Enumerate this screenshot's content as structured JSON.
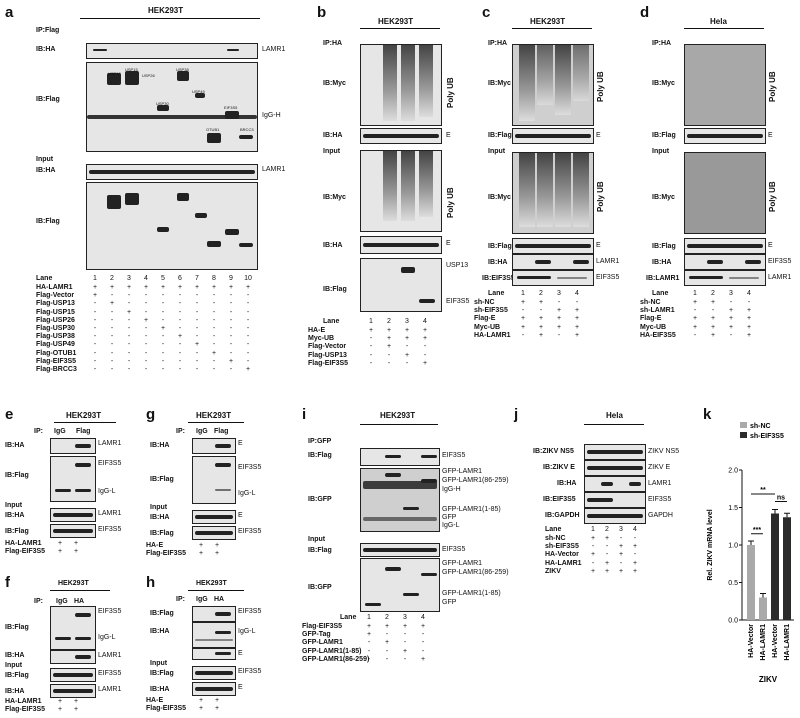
{
  "panels": {
    "a": {
      "label": "a",
      "cell": "HEK293T",
      "ip": "IP:Flag",
      "ib_ha": "IB:HA",
      "lamr1": "LAMR1",
      "ib_flag": "IB:Flag",
      "igg_h": "IgG-H",
      "input": "Input",
      "ib_ha2": "IB:HA",
      "lamr1_2": "LAMR1",
      "ib_flag2": "IB:Flag",
      "bands_top": [
        "USP13",
        "USP15",
        "USP26",
        "USP38",
        "USP30",
        "USP49",
        "EIF3S5",
        "OTUB1",
        "BRCC3"
      ],
      "lane": "Lane",
      "lanes": [
        "1",
        "2",
        "3",
        "4",
        "5",
        "6",
        "7",
        "8",
        "9",
        "10"
      ],
      "rows": [
        {
          "name": "HA-LAMR1",
          "v": [
            "+",
            "+",
            "+",
            "+",
            "+",
            "+",
            "+",
            "+",
            "+",
            "+"
          ]
        },
        {
          "name": "Flag-Vector",
          "v": [
            "+",
            "-",
            "-",
            "-",
            "-",
            "-",
            "-",
            "-",
            "-",
            "-"
          ]
        },
        {
          "name": "Flag-USP13",
          "v": [
            "-",
            "+",
            "-",
            "-",
            "-",
            "-",
            "-",
            "-",
            "-",
            "-"
          ]
        },
        {
          "name": "Flag-USP15",
          "v": [
            "-",
            "-",
            "+",
            "-",
            "-",
            "-",
            "-",
            "-",
            "-",
            "-"
          ]
        },
        {
          "name": "Flag-USP26",
          "v": [
            "-",
            "-",
            "-",
            "+",
            "-",
            "-",
            "-",
            "-",
            "-",
            "-"
          ]
        },
        {
          "name": "Flag-USP30",
          "v": [
            "-",
            "-",
            "-",
            "-",
            "+",
            "-",
            "-",
            "-",
            "-",
            "-"
          ]
        },
        {
          "name": "Flag-USP38",
          "v": [
            "-",
            "-",
            "-",
            "-",
            "-",
            "+",
            "-",
            "-",
            "-",
            "-"
          ]
        },
        {
          "name": "Flag-USP49",
          "v": [
            "-",
            "-",
            "-",
            "-",
            "-",
            "-",
            "+",
            "-",
            "-",
            "-"
          ]
        },
        {
          "name": "Flag-OTUB1",
          "v": [
            "-",
            "-",
            "-",
            "-",
            "-",
            "-",
            "-",
            "+",
            "-",
            "-"
          ]
        },
        {
          "name": "Flag-EIF3S5",
          "v": [
            "-",
            "-",
            "-",
            "-",
            "-",
            "-",
            "-",
            "-",
            "+",
            "-"
          ]
        },
        {
          "name": "Flag-BRCC3",
          "v": [
            "-",
            "-",
            "-",
            "-",
            "-",
            "-",
            "-",
            "-",
            "-",
            "+"
          ]
        }
      ]
    },
    "b": {
      "label": "b",
      "cell": "HEK293T",
      "ip": "IP:HA",
      "ib_myc": "IB:Myc",
      "polyub": "Poly UB",
      "ib_ha": "IB:HA",
      "e": "E",
      "input": "Input",
      "ib_myc2": "IB:Myc",
      "polyub2": "Poly UB",
      "ib_ha2": "IB:HA",
      "e2": "E",
      "ib_flag": "IB:Flag",
      "usp13": "USP13",
      "eif3s5": "EIF3S5",
      "lane": "Lane",
      "lanes": [
        "1",
        "2",
        "3",
        "4"
      ],
      "rows": [
        {
          "name": "HA-E",
          "v": [
            "+",
            "+",
            "+",
            "+"
          ]
        },
        {
          "name": "Myc-UB",
          "v": [
            "-",
            "+",
            "+",
            "+"
          ]
        },
        {
          "name": "Flag-Vector",
          "v": [
            "-",
            "+",
            "-",
            "-"
          ]
        },
        {
          "name": "Flag-USP13",
          "v": [
            "-",
            "-",
            "+",
            "-"
          ]
        },
        {
          "name": "Flag-EIF3S5",
          "v": [
            "-",
            "-",
            "-",
            "+"
          ]
        }
      ]
    },
    "c": {
      "label": "c",
      "cell": "HEK293T",
      "ip": "IP:HA",
      "ib_myc": "IB:Myc",
      "polyub": "Poly UB",
      "ib_flag": "IB:Flag",
      "e": "E",
      "input": "Input",
      "ib_myc2": "IB:Myc",
      "polyub2": "Poly UB",
      "ib_flag2": "IB:Flag",
      "e2": "E",
      "ib_ha": "IB:HA",
      "lamr1": "LAMR1",
      "ib_eif": "IB:EIF3S5",
      "eif3s5": "EIF3S5",
      "lane": "Lane",
      "lanes": [
        "1",
        "2",
        "3",
        "4"
      ],
      "rows": [
        {
          "name": "sh-NC",
          "v": [
            "+",
            "+",
            "-",
            "-"
          ]
        },
        {
          "name": "sh-EIF3S5",
          "v": [
            "-",
            "-",
            "+",
            "+"
          ]
        },
        {
          "name": "Flag-E",
          "v": [
            "+",
            "+",
            "+",
            "+"
          ]
        },
        {
          "name": "Myc-UB",
          "v": [
            "+",
            "+",
            "+",
            "+"
          ]
        },
        {
          "name": "HA-LAMR1",
          "v": [
            "-",
            "+",
            "-",
            "+"
          ]
        }
      ]
    },
    "d": {
      "label": "d",
      "cell": "Hela",
      "ip": "IP:HA",
      "ib_myc": "IB:Myc",
      "polyub": "Poly UB",
      "ib_flag": "IB:Flag",
      "e": "E",
      "input": "Input",
      "ib_myc2": "IB:Myc",
      "polyub2": "Poly UB",
      "ib_flag2": "IB:Flag",
      "e2": "E",
      "ib_ha": "IB:HA",
      "eif3s5": "EIF3S5",
      "ib_lamr1": "IB:LAMR1",
      "lamr1": "LAMR1",
      "lane": "Lane",
      "lanes": [
        "1",
        "2",
        "3",
        "4"
      ],
      "rows": [
        {
          "name": "sh-NC",
          "v": [
            "+",
            "+",
            "-",
            "-"
          ]
        },
        {
          "name": "sh-LAMR1",
          "v": [
            "-",
            "-",
            "+",
            "+"
          ]
        },
        {
          "name": "Flag-E",
          "v": [
            "+",
            "+",
            "+",
            "+"
          ]
        },
        {
          "name": "Myc-UB",
          "v": [
            "+",
            "+",
            "+",
            "+"
          ]
        },
        {
          "name": "HA-EIF3S5",
          "v": [
            "-",
            "+",
            "-",
            "+"
          ]
        }
      ]
    },
    "e": {
      "label": "e",
      "cell": "HEK293T",
      "ip": "IP:",
      "igg": "IgG",
      "flag": "Flag",
      "ib_ha": "IB:HA",
      "lamr1": "LAMR1",
      "ib_flag": "IB:Flag",
      "eif3s5": "EIF3S5",
      "iggl": "IgG-L",
      "input": "Input",
      "ib_ha2": "IB:HA",
      "lamr1_2": "LAMR1",
      "ib_flag2": "IB:Flag",
      "eif3s5_2": "EIF3S5",
      "rows": [
        {
          "name": "HA-LAMR1",
          "v": [
            "+",
            "+"
          ]
        },
        {
          "name": "Flag-EIF3S5",
          "v": [
            "+",
            "+"
          ]
        }
      ]
    },
    "f": {
      "label": "f",
      "cell": "HEK293T",
      "ip": "IP:",
      "igg": "IgG",
      "ha": "HA",
      "ib_flag": "IB:Flag",
      "eif3s5": "EIF3S5",
      "iggl": "IgG-L",
      "ib_ha": "IB:HA",
      "lamr1": "LAMR1",
      "input": "Input",
      "ib_flag2": "IB:Flag",
      "eif3s5_2": "EIF3S5",
      "ib_ha2": "IB:HA",
      "lamr1_2": "LAMR1",
      "rows": [
        {
          "name": "HA-LAMR1",
          "v": [
            "+",
            "+"
          ]
        },
        {
          "name": "Flag-EIF3S5",
          "v": [
            "+",
            "+"
          ]
        }
      ]
    },
    "g": {
      "label": "g",
      "cell": "HEK293T",
      "ip": "IP:",
      "igg": "IgG",
      "flag": "Flag",
      "ib_ha": "IB:HA",
      "e": "E",
      "ib_flag": "IB:Flag",
      "eif3s5": "EIF3S5",
      "iggl": "IgG-L",
      "input": "Input",
      "ib_ha2": "IB:HA",
      "e2": "E",
      "ib_flag2": "IB:Flag",
      "eif3s5_2": "EIF3S5",
      "rows": [
        {
          "name": "HA-E",
          "v": [
            "+",
            "+"
          ]
        },
        {
          "name": "Flag-EIF3S5",
          "v": [
            "+",
            "+"
          ]
        }
      ]
    },
    "h": {
      "label": "h",
      "cell": "HEK293T",
      "ip": "IP:",
      "igg": "IgG",
      "ha": "HA",
      "ib_flag": "IB:Flag",
      "eif3s5": "EIF3S5",
      "ib_ha": "IB:HA",
      "iggl": "IgG-L",
      "e": "E",
      "input": "Input",
      "ib_flag2": "IB:Flag",
      "eif3s5_2": "EIF3S5",
      "ib_ha2": "IB:HA",
      "e2": "E",
      "rows": [
        {
          "name": "HA-E",
          "v": [
            "+",
            "+"
          ]
        },
        {
          "name": "Flag-EIF3S5",
          "v": [
            "+",
            "+"
          ]
        }
      ]
    },
    "i": {
      "label": "i",
      "cell": "HEK293T",
      "ip": "IP:GFP",
      "ib_flag": "IB:Flag",
      "eif3s5": "EIF3S5",
      "ib_gfp": "IB:GFP",
      "gfp_lamr1": "GFP-LAMR1",
      "gfp_lamr1_86": "GFP-LAMR1(86-259)",
      "igg_h": "IgG-H",
      "gfp": "GFP",
      "gfp_lamr1_1": "GFP-LAMR1(1-85)",
      "iggl": "IgG-L",
      "input": "Input",
      "ib_flag2": "IB:Flag",
      "eif3s5_2": "EIF3S5",
      "ib_gfp2": "IB:GFP",
      "gfp_lamr1_b": "GFP-LAMR1",
      "gfp_lamr1_86_b": "GFP-LAMR1(86-259)",
      "gfp_lamr1_1_b": "GFP-LAMR1(1-85)",
      "gfp_b": "GFP",
      "lane": "Lane",
      "lanes": [
        "1",
        "2",
        "3",
        "4"
      ],
      "rows": [
        {
          "name": "Flag-EIF3S5",
          "v": [
            "+",
            "+",
            "+",
            "+"
          ]
        },
        {
          "name": "GFP-Tag",
          "v": [
            "+",
            "-",
            "-",
            "-"
          ]
        },
        {
          "name": "GFP-LAMR1",
          "v": [
            "-",
            "+",
            "-",
            "-"
          ]
        },
        {
          "name": "GFP-LAMR1(1-85)",
          "v": [
            "-",
            "-",
            "+",
            "-"
          ]
        },
        {
          "name": "GFP-LAMR1(86-259)",
          "v": [
            "-",
            "-",
            "-",
            "+"
          ]
        }
      ]
    },
    "j": {
      "label": "j",
      "cell": "Hela",
      "ib_ns5": "IB:ZIKV NS5",
      "ns5": "ZIKV NS5",
      "ib_e": "IB:ZIKV E",
      "zikv_e": "ZIKV E",
      "ib_ha": "IB:HA",
      "lamr1": "LAMR1",
      "ib_eif": "IB:EIF3S5",
      "eif3s5": "EIF3S5",
      "ib_gapdh": "IB:GAPDH",
      "gapdh": "GAPDH",
      "lane": "Lane",
      "lanes": [
        "1",
        "2",
        "3",
        "4"
      ],
      "rows": [
        {
          "name": "sh-NC",
          "v": [
            "+",
            "+",
            "-",
            "-"
          ]
        },
        {
          "name": "sh-EIF3S5",
          "v": [
            "-",
            "-",
            "+",
            "+"
          ]
        },
        {
          "name": "HA-Vector",
          "v": [
            "+",
            "-",
            "+",
            "-"
          ]
        },
        {
          "name": "HA-LAMR1",
          "v": [
            "-",
            "+",
            "-",
            "+"
          ]
        },
        {
          "name": "ZIKV",
          "v": [
            "+",
            "+",
            "+",
            "+"
          ]
        }
      ]
    },
    "k": {
      "label": "k"
    }
  },
  "chart_data": {
    "type": "bar",
    "title": "",
    "ylabel": "Rel. ZIKV mRNA level",
    "xlabel": "ZIKV",
    "ylim": [
      0,
      2.0
    ],
    "yticks": [
      "0.0",
      "0.5",
      "1.0",
      "1.5",
      "2.0"
    ],
    "categories": [
      "HA-Vector",
      "HA-LAMR1",
      "HA-Vector",
      "HA-LAMR1"
    ],
    "series": [
      {
        "name": "sh-NC",
        "color": "#a9a9a9",
        "values": [
          1.0,
          0.3,
          null,
          null
        ]
      },
      {
        "name": "sh-EIF3S5",
        "color": "#2b2b2b",
        "values": [
          null,
          null,
          1.42,
          1.37
        ]
      }
    ],
    "significance": [
      {
        "label": "***",
        "between": [
          0,
          1
        ]
      },
      {
        "label": "**",
        "between": [
          0,
          2
        ]
      },
      {
        "label": "ns",
        "between": [
          2,
          3
        ]
      }
    ]
  }
}
